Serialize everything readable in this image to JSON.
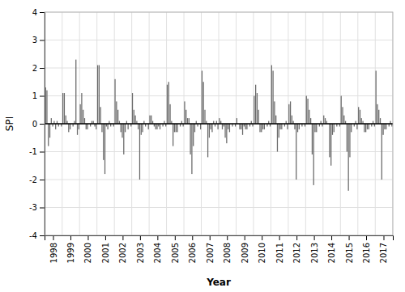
{
  "chart_data": {
    "type": "bar",
    "x_label": "Year",
    "y_label": "SPI",
    "color": "#696969",
    "grid": true,
    "ylim": [
      -4,
      4
    ],
    "yticks": [
      -4,
      -3,
      -2,
      -1,
      0,
      1,
      2,
      3,
      4
    ],
    "categories": [
      null,
      null,
      null,
      null,
      null,
      "1998",
      null,
      null,
      null,
      null,
      null,
      null,
      null,
      null,
      null,
      null,
      null,
      "1999",
      null,
      null,
      null,
      null,
      null,
      null,
      null,
      null,
      null,
      null,
      null,
      "2000",
      null,
      null,
      null,
      null,
      null,
      null,
      null,
      null,
      null,
      null,
      null,
      "2001",
      null,
      null,
      null,
      null,
      null,
      null,
      null,
      null,
      null,
      null,
      null,
      "2002",
      null,
      null,
      null,
      null,
      null,
      null,
      null,
      null,
      null,
      null,
      null,
      "2003",
      null,
      null,
      null,
      null,
      null,
      null,
      null,
      null,
      null,
      null,
      null,
      "2004",
      null,
      null,
      null,
      null,
      null,
      null,
      null,
      null,
      null,
      null,
      null,
      "2005",
      null,
      null,
      null,
      null,
      null,
      null,
      null,
      null,
      null,
      null,
      null,
      "2006",
      null,
      null,
      null,
      null,
      null,
      null,
      null,
      null,
      null,
      null,
      null,
      "2007",
      null,
      null,
      null,
      null,
      null,
      null,
      null,
      null,
      null,
      null,
      null,
      "2008",
      null,
      null,
      null,
      null,
      null,
      null,
      null,
      null,
      null,
      null,
      null,
      "2009",
      null,
      null,
      null,
      null,
      null,
      null,
      null,
      null,
      null,
      null,
      null,
      "2010",
      null,
      null,
      null,
      null,
      null,
      null,
      null,
      null,
      null,
      null,
      null,
      "2011",
      null,
      null,
      null,
      null,
      null,
      null,
      null,
      null,
      null,
      null,
      null,
      "2012",
      null,
      null,
      null,
      null,
      null,
      null,
      null,
      null,
      null,
      null,
      null,
      "2013",
      null,
      null,
      null,
      null,
      null,
      null,
      null,
      null,
      null,
      null,
      null,
      "2014",
      null,
      null,
      null,
      null,
      null,
      null,
      null,
      null,
      null,
      null,
      null,
      "2015",
      null,
      null,
      null,
      null,
      null,
      null,
      null,
      null,
      null,
      null,
      null,
      "2016",
      null,
      null,
      null,
      null,
      null,
      null,
      null,
      null,
      null,
      null,
      null,
      "2017",
      null,
      null,
      null,
      null,
      null,
      null
    ],
    "values": [
      1.3,
      1.2,
      -0.8,
      -0.5,
      0.2,
      -0.1,
      0.1,
      -0.2,
      0.1,
      -0.1,
      0.0,
      -0.1,
      1.1,
      1.1,
      0.3,
      0.1,
      -0.3,
      -0.2,
      0.0,
      -0.1,
      0.1,
      2.3,
      -0.4,
      -0.2,
      0.7,
      1.1,
      0.5,
      0.2,
      -0.2,
      -0.2,
      0.0,
      -0.1,
      0.1,
      0.1,
      -0.1,
      -0.2,
      2.1,
      2.1,
      0.6,
      -0.3,
      -1.3,
      -1.8,
      -0.1,
      -0.2,
      0.1,
      -0.1,
      0.0,
      -0.1,
      1.6,
      0.8,
      0.5,
      0.1,
      -0.3,
      -0.5,
      -1.1,
      -0.3,
      0.1,
      -0.2,
      0.0,
      -0.1,
      1.1,
      0.5,
      0.3,
      0.1,
      -0.2,
      -2.0,
      -0.4,
      -0.3,
      0.1,
      -0.1,
      0.0,
      -0.2,
      0.3,
      0.3,
      0.1,
      -0.1,
      -0.2,
      -0.2,
      -0.1,
      -0.2,
      0.0,
      -0.1,
      0.1,
      -0.1,
      1.4,
      1.5,
      0.7,
      0.1,
      -0.8,
      -0.3,
      -0.3,
      -0.3,
      0.0,
      -0.1,
      0.1,
      -0.1,
      0.8,
      0.5,
      0.2,
      0.2,
      -1.1,
      -1.8,
      -0.8,
      -0.3,
      0.1,
      -0.1,
      0.0,
      -0.2,
      1.9,
      1.5,
      0.5,
      0.1,
      -1.2,
      -0.5,
      -0.2,
      -0.3,
      0.1,
      -0.1,
      0.1,
      -0.2,
      0.2,
      0.1,
      -0.2,
      -0.1,
      -0.5,
      -0.7,
      -0.2,
      -0.3,
      0.0,
      -0.1,
      0.0,
      -0.1,
      0.2,
      0.0,
      -0.2,
      -0.2,
      -0.4,
      -0.1,
      -0.2,
      -0.2,
      0.0,
      -0.1,
      0.1,
      -0.1,
      1.0,
      1.4,
      1.1,
      0.5,
      -0.3,
      -0.3,
      -0.2,
      -0.2,
      0.0,
      -0.1,
      0.1,
      -0.1,
      2.1,
      1.9,
      0.8,
      0.3,
      -1.0,
      -0.5,
      -0.2,
      -0.2,
      0.0,
      -0.1,
      0.1,
      -0.2,
      0.7,
      0.8,
      0.3,
      0.1,
      -0.2,
      -2.0,
      -0.3,
      -0.2,
      0.0,
      -0.1,
      0.0,
      -0.1,
      1.0,
      0.9,
      0.5,
      0.2,
      -1.1,
      -2.2,
      -0.3,
      -0.3,
      0.0,
      -0.1,
      0.1,
      -0.1,
      0.3,
      0.2,
      0.1,
      0.0,
      -1.2,
      -1.5,
      -0.4,
      -0.3,
      0.0,
      -0.1,
      0.0,
      -0.1,
      1.0,
      0.6,
      0.3,
      0.1,
      -1.0,
      -2.4,
      -1.2,
      -0.3,
      0.0,
      -0.1,
      0.1,
      -0.2,
      0.6,
      0.5,
      0.2,
      0.1,
      -0.3,
      -0.3,
      -0.2,
      -0.2,
      0.0,
      -0.1,
      0.1,
      -0.1,
      1.9,
      0.7,
      0.5,
      0.2,
      -2.0,
      -0.4,
      -0.2,
      -0.2,
      0.0,
      -0.1,
      0.1,
      -0.1
    ]
  }
}
